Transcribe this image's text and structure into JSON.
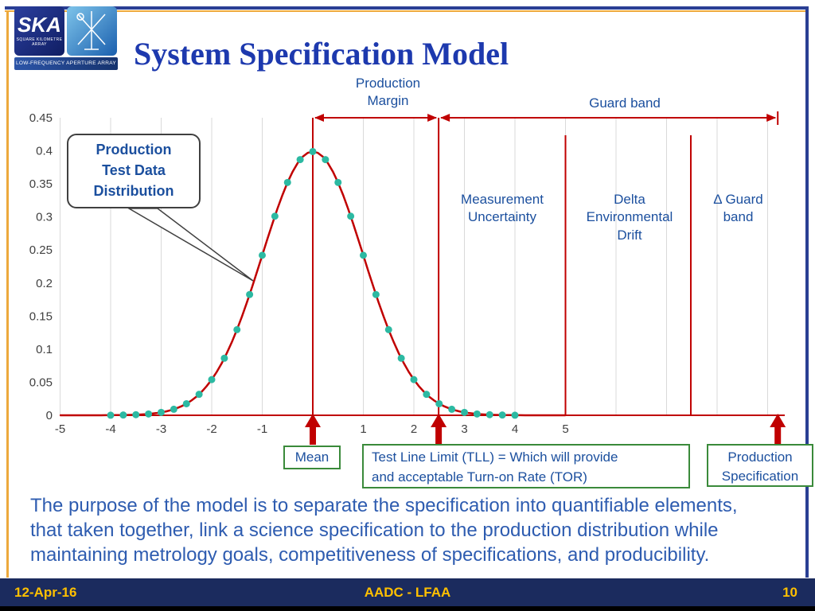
{
  "header": {
    "title": "System Specification Model",
    "logo": {
      "acronym": "SKA",
      "tagline": "SQUARE KILOMETRE ARRAY",
      "subtitle": "LOW-FREQUENCY APERTURE ARRAY"
    }
  },
  "chart_data": {
    "type": "line",
    "title": "Production test data distribution (normal curve) with specification markers",
    "xlabel": "",
    "ylabel": "",
    "ylim": [
      0,
      0.45
    ],
    "xlim_labeled": [
      -5,
      5
    ],
    "grid_x": [
      -5,
      -4,
      -3,
      -2,
      -1,
      0,
      1,
      2,
      3,
      4,
      5,
      6,
      7,
      8,
      9
    ],
    "xticks": [
      {
        "v": -5,
        "label": "-5"
      },
      {
        "v": -4,
        "label": "-4"
      },
      {
        "v": -3,
        "label": "-3"
      },
      {
        "v": -2,
        "label": "-2"
      },
      {
        "v": -1,
        "label": "-1"
      },
      {
        "v": 1,
        "label": "1"
      },
      {
        "v": 2,
        "label": "2"
      },
      {
        "v": 3,
        "label": "3"
      },
      {
        "v": 4,
        "label": "4"
      },
      {
        "v": 5,
        "label": "5"
      }
    ],
    "yticks": [
      {
        "v": 0,
        "label": "0"
      },
      {
        "v": 0.05,
        "label": "0.05"
      },
      {
        "v": 0.1,
        "label": "0.1"
      },
      {
        "v": 0.15,
        "label": "0.15"
      },
      {
        "v": 0.2,
        "label": "0.2"
      },
      {
        "v": 0.25,
        "label": "0.25"
      },
      {
        "v": 0.3,
        "label": "0.3"
      },
      {
        "v": 0.35,
        "label": "0.35"
      },
      {
        "v": 0.4,
        "label": "0.4"
      },
      {
        "v": 0.45,
        "label": "0.45"
      }
    ],
    "curve": {
      "distribution": "normal",
      "mean": 0,
      "sd": 1,
      "peak": 0.3989,
      "range": [
        -5,
        5
      ]
    },
    "series": [
      {
        "name": "Production Test Data Distribution",
        "points": [
          {
            "x": -4,
            "y": 0.0001
          },
          {
            "x": -3.75,
            "y": 0.0004
          },
          {
            "x": -3.5,
            "y": 0.0009
          },
          {
            "x": -3.25,
            "y": 0.002
          },
          {
            "x": -3,
            "y": 0.0044
          },
          {
            "x": -2.75,
            "y": 0.0091
          },
          {
            "x": -2.5,
            "y": 0.0175
          },
          {
            "x": -2.25,
            "y": 0.0317
          },
          {
            "x": -2,
            "y": 0.054
          },
          {
            "x": -1.75,
            "y": 0.0863
          },
          {
            "x": -1.5,
            "y": 0.1295
          },
          {
            "x": -1.25,
            "y": 0.1826
          },
          {
            "x": -1,
            "y": 0.242
          },
          {
            "x": -0.75,
            "y": 0.3011
          },
          {
            "x": -0.5,
            "y": 0.3521
          },
          {
            "x": -0.25,
            "y": 0.3867
          },
          {
            "x": 0,
            "y": 0.3989
          },
          {
            "x": 0.25,
            "y": 0.3867
          },
          {
            "x": 0.5,
            "y": 0.3521
          },
          {
            "x": 0.75,
            "y": 0.3011
          },
          {
            "x": 1,
            "y": 0.242
          },
          {
            "x": 1.25,
            "y": 0.1826
          },
          {
            "x": 1.5,
            "y": 0.1295
          },
          {
            "x": 1.75,
            "y": 0.0863
          },
          {
            "x": 2,
            "y": 0.054
          },
          {
            "x": 2.25,
            "y": 0.0317
          },
          {
            "x": 2.5,
            "y": 0.0175
          },
          {
            "x": 2.75,
            "y": 0.0091
          },
          {
            "x": 3,
            "y": 0.0044
          },
          {
            "x": 3.25,
            "y": 0.002
          },
          {
            "x": 3.5,
            "y": 0.0009
          },
          {
            "x": 3.75,
            "y": 0.0004
          },
          {
            "x": 4,
            "y": 0.0001
          }
        ]
      }
    ],
    "markers": {
      "mean_x": 0,
      "tll_x": 2.49,
      "env_drift_x": 5.0,
      "guard_band_x": 7.48,
      "spec_x": 9.2
    },
    "colors": {
      "curve": "#c00000",
      "dots": "#2cb9a2",
      "grid": "#d9d9d9",
      "tick_text": "#404040"
    }
  },
  "labels": {
    "production_margin": "Production Margin",
    "guard_band": "Guard band",
    "measurement_uncertainty": "Measurement Uncertainty",
    "delta_environmental_drift": "Delta Environmental Drift",
    "delta_guard_band": "Δ Guard band",
    "callout_lines": [
      "Production",
      "Test Data",
      "Distribution"
    ],
    "mean": "Mean",
    "tll_lines": [
      "Test Line Limit (TLL) = Which will provide",
      "and acceptable Turn-on Rate (TOR)"
    ],
    "production_specification": "Production Specification"
  },
  "body": {
    "lines": [
      "The purpose of the model is to separate the specification into quantifiable elements,",
      "that taken together, link a science specification to the production distribution while",
      "maintaining metrology goals, competitiveness of specifications, and producibility."
    ]
  },
  "footer": {
    "date": "12-Apr-16",
    "center": "AADC - LFAA",
    "page": "10"
  },
  "colors": {
    "title_blue": "#1d39ae",
    "label_blue": "#1b4f9e",
    "body_blue": "#2e5cb0",
    "accent_red": "#c00000",
    "dot_teal": "#2cb9a2",
    "box_green": "#3a8a3a",
    "footer_bg": "#1b2b5e",
    "footer_text": "#ffc000",
    "frame_gold": "#eda93c",
    "frame_blue": "#2a3f94"
  }
}
